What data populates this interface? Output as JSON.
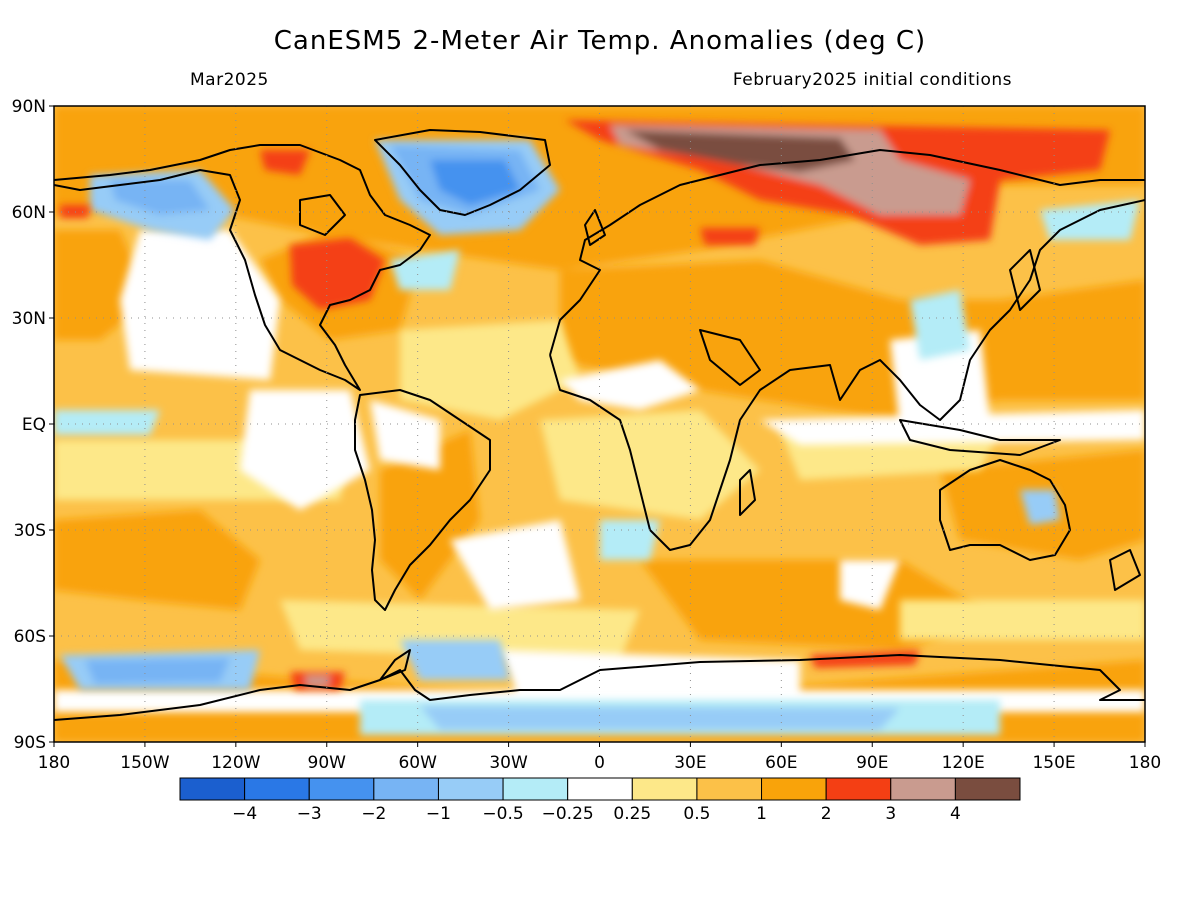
{
  "title": "CanESM5 2-Meter Air Temp. Anomalies (deg C)",
  "valid_month": "Mar2025",
  "init_conditions": "February2025 initial conditions",
  "map": {
    "lon_range": [
      -180,
      180
    ],
    "lat_range": [
      -90,
      90
    ],
    "lat_ticks": [
      {
        "lat": 90,
        "label": "90N"
      },
      {
        "lat": 60,
        "label": "60N"
      },
      {
        "lat": 30,
        "label": "30N"
      },
      {
        "lat": 0,
        "label": "EQ"
      },
      {
        "lat": -30,
        "label": "30S"
      },
      {
        "lat": -60,
        "label": "60S"
      },
      {
        "lat": -90,
        "label": "90S"
      }
    ],
    "lon_ticks": [
      {
        "lon": -180,
        "label": "180"
      },
      {
        "lon": -150,
        "label": "150W"
      },
      {
        "lon": -120,
        "label": "120W"
      },
      {
        "lon": -90,
        "label": "90W"
      },
      {
        "lon": -60,
        "label": "60W"
      },
      {
        "lon": -30,
        "label": "30W"
      },
      {
        "lon": 0,
        "label": "0"
      },
      {
        "lon": 30,
        "label": "30E"
      },
      {
        "lon": 60,
        "label": "60E"
      },
      {
        "lon": 90,
        "label": "90E"
      },
      {
        "lon": 120,
        "label": "120E"
      },
      {
        "lon": 150,
        "label": "150E"
      },
      {
        "lon": 180,
        "label": "180"
      }
    ],
    "grid": true
  },
  "colorbar": {
    "colors": [
      "#1b5fcf",
      "#2a78e6",
      "#4592ef",
      "#77b4f4",
      "#97ccf7",
      "#b4ecf7",
      "#ffffff",
      "#fde889",
      "#fcc148",
      "#f9a30a",
      "#f43f14",
      "#c99b8f",
      "#7a4d3f"
    ],
    "labels": [
      "−4",
      "−3",
      "−2",
      "−1",
      "−0.5",
      "−0.25",
      "0.25",
      "0.5",
      "1",
      "2",
      "3",
      "4"
    ]
  },
  "anomaly_regions": [
    {
      "name": "siberia-core",
      "value_level": "above 4",
      "lon": [
        5,
        75
      ],
      "lat": [
        70,
        85
      ]
    },
    {
      "name": "east-siberia",
      "value_level": "3 to 4",
      "lon": [
        75,
        125
      ],
      "lat": [
        58,
        78
      ]
    },
    {
      "name": "greenland",
      "value_level": "-3 to -2",
      "lon": [
        -55,
        -20
      ],
      "lat": [
        60,
        82
      ]
    },
    {
      "name": "eastern-north-america",
      "value_level": "2 to 3",
      "lon": [
        -100,
        -75
      ],
      "lat": [
        33,
        50
      ]
    },
    {
      "name": "alaska",
      "value_level": "-2 to -1",
      "lon": [
        -170,
        -135
      ],
      "lat": [
        55,
        72
      ]
    },
    {
      "name": "southern-ocean-pacific",
      "value_level": "-3 to -1",
      "lon": [
        -175,
        -125
      ],
      "lat": [
        -75,
        -66
      ]
    }
  ]
}
